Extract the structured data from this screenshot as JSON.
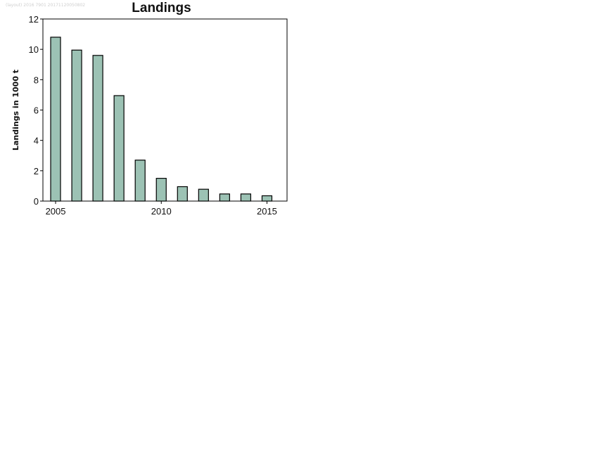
{
  "watermark": "(layout) 2016 7901 20171120050802",
  "chart_data": {
    "type": "bar",
    "title": "Landings",
    "ylabel": "Landings in 1000 t",
    "xlabel": "",
    "categories": [
      2005,
      2006,
      2007,
      2008,
      2009,
      2010,
      2011,
      2012,
      2013,
      2014,
      2015
    ],
    "values": [
      10.8,
      9.95,
      9.6,
      6.95,
      2.7,
      1.5,
      0.95,
      0.78,
      0.47,
      0.47,
      0.35
    ],
    "ylim": [
      0,
      12
    ],
    "yticks": [
      0,
      2,
      4,
      6,
      8,
      10,
      12
    ],
    "xticks": [
      2005,
      2010,
      2015
    ],
    "xlim": [
      2004.4,
      2015.95
    ],
    "bar_color": "#9cc2b4",
    "grid": false,
    "legend": "none"
  }
}
